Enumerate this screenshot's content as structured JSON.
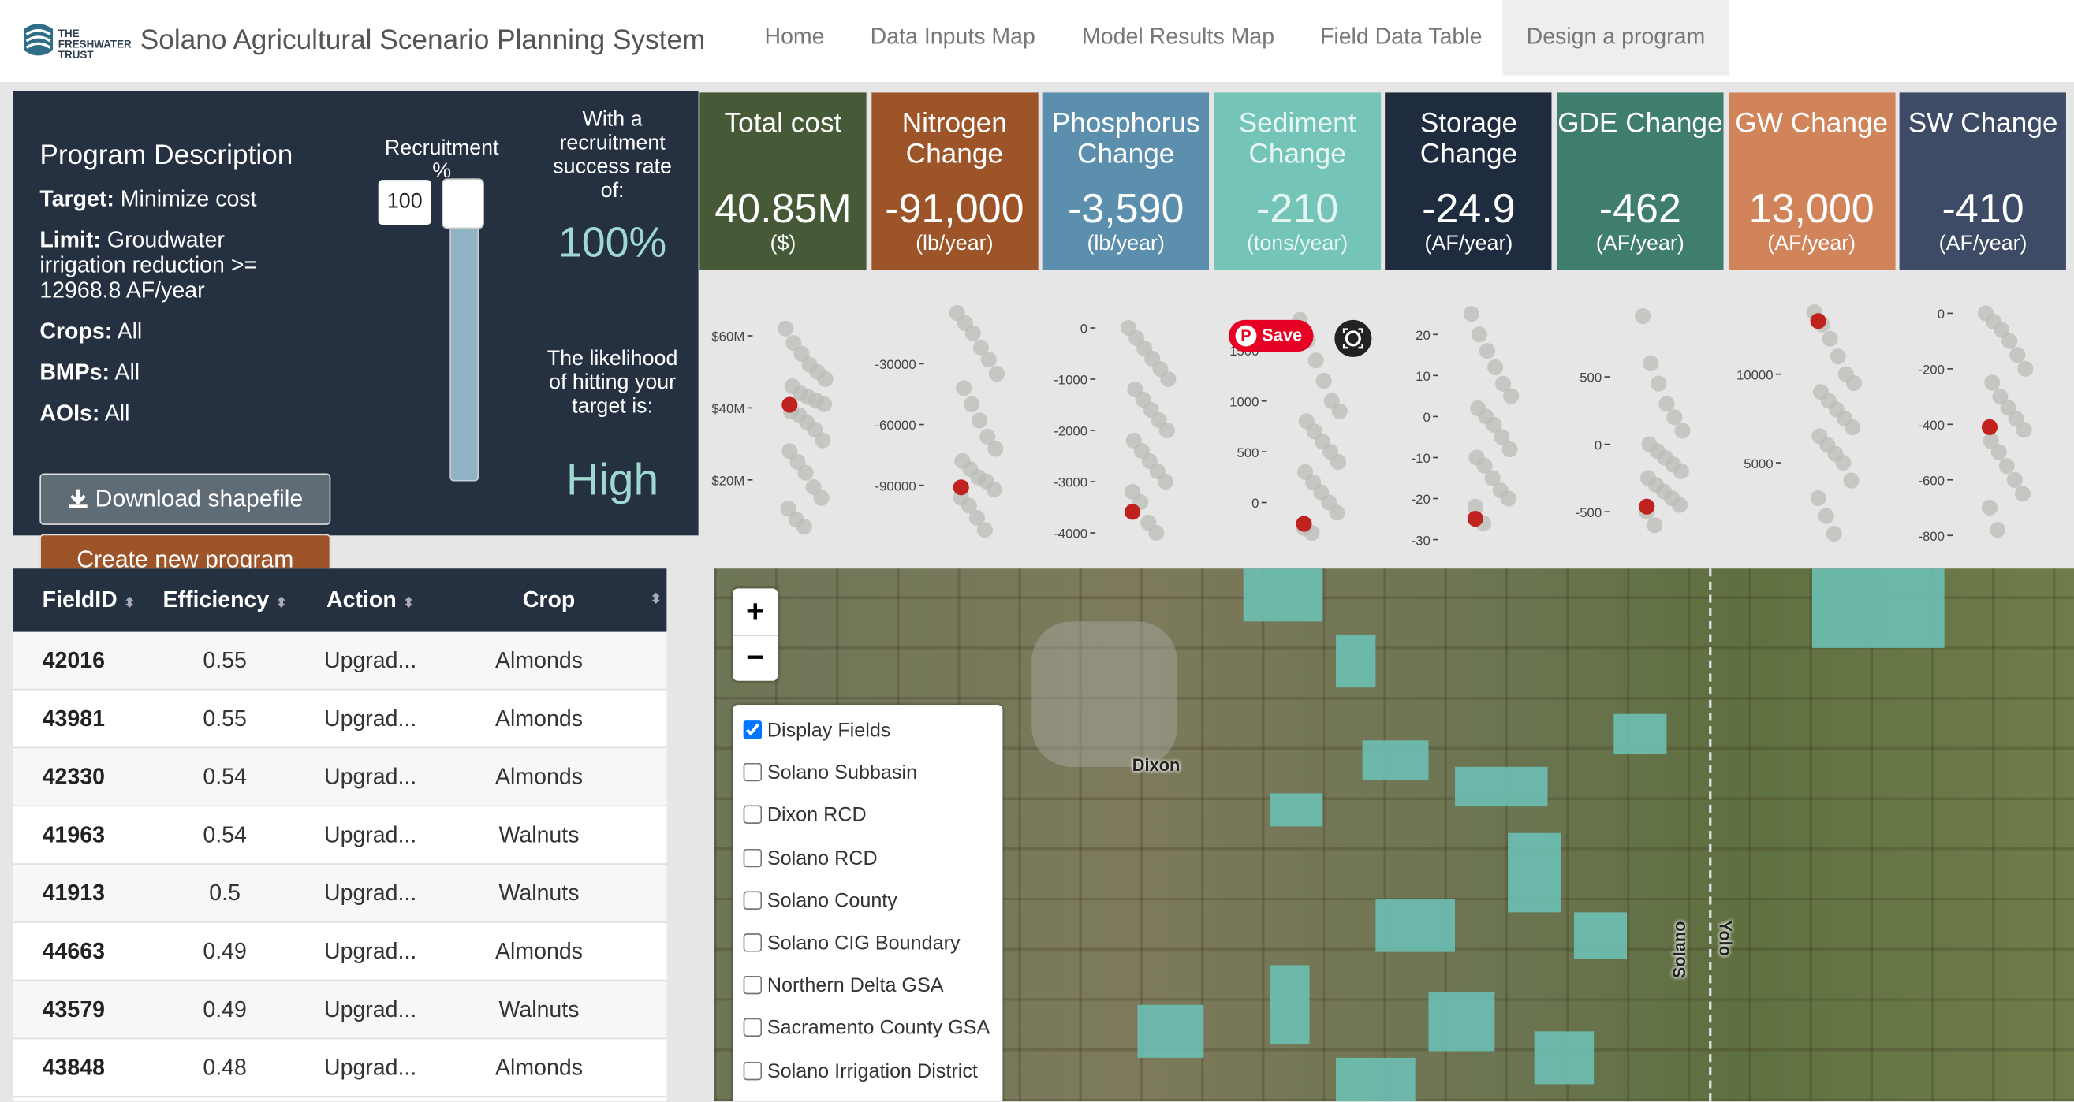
{
  "header": {
    "logo_text": "THE FRESHWATER TRUST",
    "title": "Solano Agricultural Scenario Planning System",
    "nav": [
      "Home",
      "Data Inputs Map",
      "Model Results Map",
      "Field Data Table",
      "Design a program"
    ],
    "active_nav": 4
  },
  "program": {
    "heading": "Program Description",
    "target_label": "Target:",
    "target": "Minimize cost",
    "limit_label": "Limit:",
    "limit": "Groudwater irrigation reduction >= 12968.8 AF/year",
    "crops_label": "Crops:",
    "crops": "All",
    "bmps_label": "BMPs:",
    "bmps": "All",
    "aois_label": "AOIs:",
    "aois": "All",
    "recruitment_label": "Recruitment %",
    "recruitment_value": 100,
    "success_text": "With a recruitment success rate of:",
    "success_rate": "100%",
    "likelihood_text": "The likelihood of hitting your target is:",
    "likelihood": "High",
    "download_button": "Download shapefile",
    "create_button": "Create new program"
  },
  "metrics": [
    {
      "title": "Total cost",
      "value": "40.85M",
      "unit": "($)",
      "color": "#465a37",
      "text_color": "#ffffff"
    },
    {
      "title": "Nitrogen Change",
      "value": "-91,000",
      "unit": "(lb/year)",
      "color": "#9c5428",
      "text_color": "#ffffff"
    },
    {
      "title": "Phosphorus Change",
      "value": "-3,590",
      "unit": "(lb/year)",
      "color": "#5b8fad",
      "text_color": "#ffffff"
    },
    {
      "title": "Sediment Change",
      "value": "-210",
      "unit": "(tons/year)",
      "color": "#74c4b8",
      "text_color": "#e6f6f3"
    },
    {
      "title": "Storage Change",
      "value": "-24.9",
      "unit": "(AF/year)",
      "color": "#1f2b3e",
      "text_color": "#ffffff"
    },
    {
      "title": "GDE Change",
      "value": "-462",
      "unit": "(AF/year)",
      "color": "#3f7d6e",
      "text_color": "#ffffff"
    },
    {
      "title": "GW Change",
      "value": "13,000",
      "unit": "(AF/year)",
      "color": "#d1845a",
      "text_color": "#ffffff"
    },
    {
      "title": "SW Change",
      "value": "-410",
      "unit": "(AF/year)",
      "color": "#3e4b66",
      "text_color": "#ffffff"
    }
  ],
  "chart_data": [
    {
      "type": "strip",
      "ylim": [
        2.75,
        68.8
      ],
      "yticks": [
        {
          "value": 60,
          "label": "$60M"
        },
        {
          "value": 40,
          "label": "$40M"
        },
        {
          "value": 20,
          "label": "$20M"
        }
      ],
      "values": [
        62,
        58,
        55,
        52,
        50,
        48,
        46,
        44,
        43,
        42,
        41,
        39,
        38,
        36,
        34,
        31,
        28,
        25,
        22,
        18,
        15,
        12,
        9,
        7
      ],
      "selected": 40.85,
      "color": "#b9beb6",
      "selected_color": "#c0231f"
    },
    {
      "type": "strip",
      "ylim": [
        -118000,
        -600
      ],
      "yticks": [
        -30000,
        -60000,
        -90000
      ],
      "values": [
        -5000,
        -10000,
        -15000,
        -22000,
        -28000,
        -35000,
        -42000,
        -50000,
        -58000,
        -66000,
        -72000,
        -78000,
        -82000,
        -86000,
        -88000,
        -92000,
        -96000,
        -100000,
        -106000,
        -112000
      ],
      "selected": -91000,
      "color": "#b9beb6",
      "selected_color": "#c0231f"
    },
    {
      "type": "strip",
      "ylim": [
        -4180,
        465
      ],
      "yticks": [
        0,
        -1000,
        -2000,
        -3000,
        -4000
      ],
      "values": [
        0,
        -200,
        -400,
        -600,
        -800,
        -1000,
        -1200,
        -1400,
        -1600,
        -1800,
        -2000,
        -2200,
        -2400,
        -2600,
        -2800,
        -3000,
        -3200,
        -3400,
        -3800,
        -4000
      ],
      "selected": -3590,
      "color": "#b9beb6",
      "selected_color": "#c0231f"
    },
    {
      "type": "strip",
      "ylim": [
        -390,
        1955
      ],
      "yticks": [
        1500,
        1000,
        500,
        0
      ],
      "values": [
        1800,
        1600,
        1400,
        1200,
        1000,
        900,
        800,
        700,
        600,
        500,
        400,
        300,
        200,
        100,
        0,
        -100,
        -250,
        -300
      ],
      "selected": -210,
      "color": "#b9beb6",
      "selected_color": "#c0231f"
    },
    {
      "type": "strip",
      "ylim": [
        -30.6,
        27.4
      ],
      "yticks": [
        20,
        10,
        0,
        -10,
        -20,
        -30
      ],
      "values": [
        25,
        20,
        16,
        12,
        8,
        5,
        2,
        0,
        -2,
        -5,
        -8,
        -10,
        -12,
        -15,
        -18,
        -20,
        -22,
        -26
      ],
      "selected": -24.9,
      "color": "#b9beb6",
      "selected_color": "#c0231f"
    },
    {
      "type": "strip",
      "ylim": [
        -725,
        1039
      ],
      "yticks": [
        500,
        0,
        -500
      ],
      "values": [
        950,
        600,
        450,
        300,
        200,
        100,
        0,
        -50,
        -100,
        -150,
        -200,
        -250,
        -300,
        -350,
        -400,
        -450,
        -500,
        -600
      ],
      "selected": -462,
      "color": "#b9beb6",
      "selected_color": "#c0231f"
    },
    {
      "type": "strip",
      "ylim": [
        522,
        13955
      ],
      "yticks": [
        10000,
        5000
      ],
      "values": [
        13500,
        12800,
        12000,
        11000,
        10000,
        9500,
        9000,
        8500,
        8000,
        7500,
        7000,
        6500,
        6000,
        5500,
        5000,
        4000,
        3000,
        2000,
        1000
      ],
      "selected": 13000,
      "color": "#b9beb6",
      "selected_color": "#c0231f"
    },
    {
      "type": "strip",
      "ylim": [
        -824,
        33
      ],
      "yticks": [
        0,
        -200,
        -400,
        -600,
        -800
      ],
      "values": [
        0,
        -30,
        -60,
        -100,
        -150,
        -200,
        -250,
        -300,
        -340,
        -380,
        -420,
        -460,
        -500,
        -550,
        -600,
        -650,
        -700,
        -780
      ],
      "selected": -410,
      "color": "#b9beb6",
      "selected_color": "#c0231f"
    }
  ],
  "overlay": {
    "save": "Save"
  },
  "table": {
    "columns": [
      "FieldID",
      "Efficiency",
      "Action",
      "Crop"
    ],
    "rows": [
      [
        42016,
        0.55,
        "Upgrad...",
        "Almonds"
      ],
      [
        43981,
        0.55,
        "Upgrad...",
        "Almonds"
      ],
      [
        42330,
        0.54,
        "Upgrad...",
        "Almonds"
      ],
      [
        41963,
        0.54,
        "Upgrad...",
        "Walnuts"
      ],
      [
        41913,
        0.5,
        "Upgrad...",
        "Walnuts"
      ],
      [
        44663,
        0.49,
        "Upgrad...",
        "Almonds"
      ],
      [
        43579,
        0.49,
        "Upgrad...",
        "Walnuts"
      ],
      [
        43848,
        0.48,
        "Upgrad...",
        "Almonds"
      ]
    ]
  },
  "map": {
    "zoom_in": "+",
    "zoom_out": "−",
    "places": [
      "Dixon",
      "Solano",
      "Yolo"
    ],
    "layers": [
      {
        "label": "Display Fields",
        "checked": true
      },
      {
        "label": "Solano Subbasin",
        "checked": false
      },
      {
        "label": "Dixon RCD",
        "checked": false
      },
      {
        "label": "Solano RCD",
        "checked": false
      },
      {
        "label": "Solano County",
        "checked": false
      },
      {
        "label": "Solano CIG Boundary",
        "checked": false
      },
      {
        "label": "Northern Delta GSA",
        "checked": false
      },
      {
        "label": "Sacramento County GSA",
        "checked": false
      },
      {
        "label": "Solano Irrigation District",
        "checked": false
      }
    ]
  }
}
